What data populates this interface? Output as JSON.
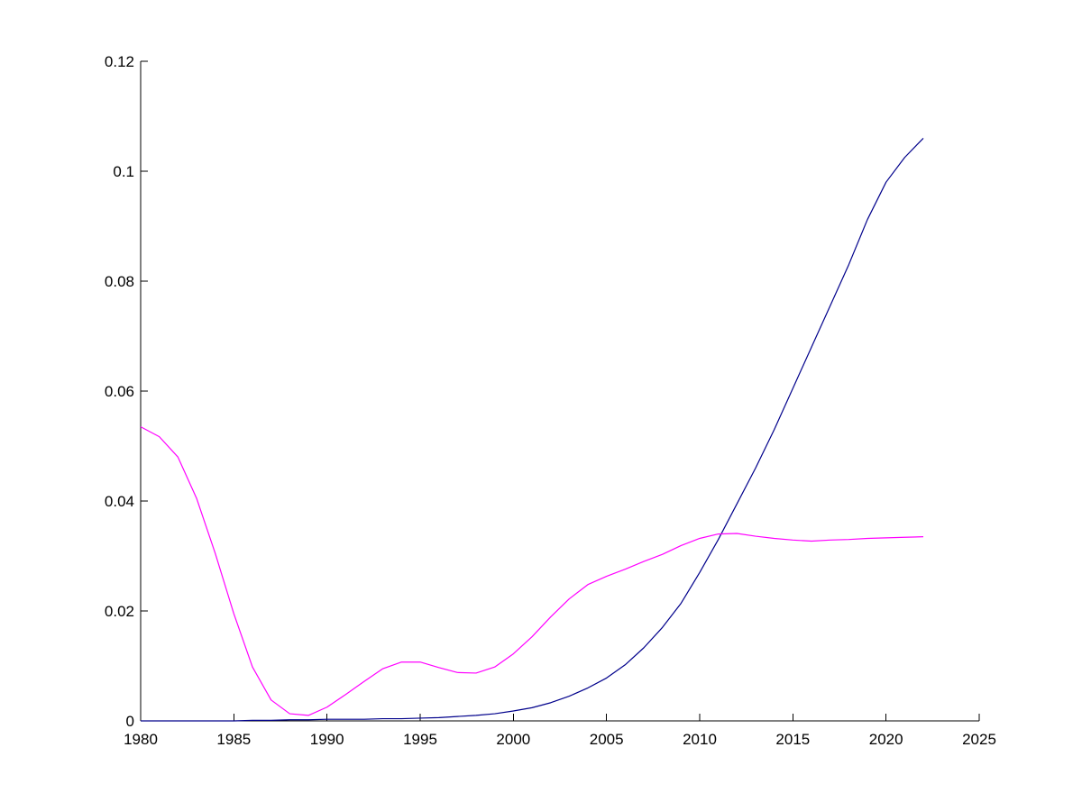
{
  "chart_data": {
    "type": "line",
    "title": "",
    "xlabel": "",
    "ylabel": "",
    "xlim": [
      1980,
      2025
    ],
    "ylim": [
      0,
      0.12
    ],
    "xticks": [
      "1980",
      "1985",
      "1990",
      "1995",
      "2000",
      "2005",
      "2010",
      "2015",
      "2020",
      "2025"
    ],
    "yticks": [
      "0",
      "0.02",
      "0.04",
      "0.06",
      "0.08",
      "0.1",
      "0.12"
    ],
    "grid": false,
    "legend": null,
    "series": [
      {
        "color": "#00008b",
        "x": [
          1980,
          1981,
          1982,
          1983,
          1984,
          1985,
          1986,
          1987,
          1988,
          1989,
          1990,
          1991,
          1992,
          1993,
          1994,
          1995,
          1996,
          1997,
          1998,
          1999,
          2000,
          2001,
          2002,
          2003,
          2004,
          2005,
          2006,
          2007,
          2008,
          2009,
          2010,
          2011,
          2012,
          2013,
          2014,
          2015,
          2016,
          2017,
          2018,
          2019,
          2020,
          2021,
          2022
        ],
        "y": [
          0,
          0,
          0,
          0,
          0,
          0,
          0.0001,
          0.0001,
          0.0002,
          0.0002,
          0.0003,
          0.0003,
          0.0003,
          0.0004,
          0.0004,
          0.0005,
          0.0006,
          0.0008,
          0.001,
          0.0013,
          0.0018,
          0.0024,
          0.0033,
          0.0045,
          0.006,
          0.0078,
          0.0102,
          0.0133,
          0.017,
          0.0214,
          0.027,
          0.033,
          0.0395,
          0.046,
          0.053,
          0.0605,
          0.068,
          0.0755,
          0.083,
          0.0912,
          0.098,
          0.1025,
          0.106
        ]
      },
      {
        "color": "#ff00ff",
        "x": [
          1980,
          1981,
          1982,
          1983,
          1984,
          1985,
          1986,
          1987,
          1988,
          1989,
          1990,
          1991,
          1992,
          1993,
          1994,
          1995,
          1996,
          1997,
          1998,
          1999,
          2000,
          2001,
          2002,
          2003,
          2004,
          2005,
          2006,
          2007,
          2008,
          2009,
          2010,
          2011,
          2012,
          2013,
          2014,
          2015,
          2016,
          2017,
          2018,
          2019,
          2020,
          2021,
          2022
        ],
        "y": [
          0.0535,
          0.0517,
          0.048,
          0.0405,
          0.0305,
          0.0195,
          0.0098,
          0.0038,
          0.0013,
          0.001,
          0.0025,
          0.0048,
          0.0072,
          0.0095,
          0.0107,
          0.0107,
          0.0097,
          0.0088,
          0.0087,
          0.0098,
          0.0122,
          0.0153,
          0.0189,
          0.0222,
          0.0248,
          0.0263,
          0.0276,
          0.029,
          0.0303,
          0.0319,
          0.0332,
          0.034,
          0.0341,
          0.0336,
          0.0332,
          0.0329,
          0.0327,
          0.0329,
          0.033,
          0.0332,
          0.0333,
          0.0334,
          0.0335
        ]
      }
    ]
  }
}
